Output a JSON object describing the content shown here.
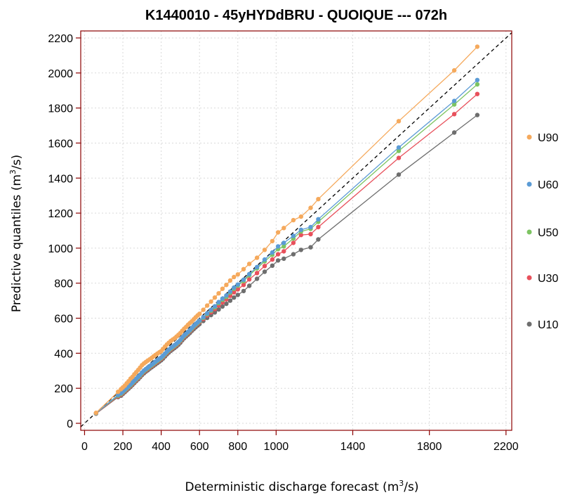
{
  "chart_data": {
    "type": "line",
    "title": "K1440010 - 45yHYDdBRU - QUOIQUE --- 072h",
    "xlabel": "Deterministic discharge forecast (m",
    "xlabel_sup": "3",
    "xlabel_end": "/s)",
    "ylabel": "Predictive quantiles (m",
    "ylabel_sup": "3",
    "ylabel_end": "/s)",
    "xlim": [
      -20,
      2230
    ],
    "ylim": [
      -40,
      2240
    ],
    "x_ticks": [
      0,
      200,
      400,
      600,
      800,
      1000,
      1400,
      1800,
      2200
    ],
    "y_ticks": [
      0,
      200,
      400,
      600,
      800,
      1000,
      1200,
      1400,
      1600,
      1800,
      2000,
      2200
    ],
    "grid": true,
    "reference_line": "y = x (dashed)",
    "legend_position": "right",
    "x": [
      60,
      175,
      190,
      200,
      210,
      220,
      230,
      240,
      250,
      260,
      270,
      280,
      290,
      300,
      310,
      320,
      330,
      340,
      350,
      360,
      370,
      380,
      390,
      400,
      410,
      420,
      430,
      440,
      450,
      460,
      470,
      480,
      490,
      500,
      510,
      520,
      530,
      540,
      550,
      560,
      570,
      580,
      590,
      600,
      620,
      640,
      660,
      680,
      700,
      720,
      740,
      760,
      780,
      800,
      830,
      860,
      900,
      940,
      980,
      1010,
      1040,
      1090,
      1130,
      1180,
      1220,
      1640,
      1930,
      2050
    ],
    "series": [
      {
        "name": "U90",
        "color": "#F5A95C",
        "values": [
          60,
          180,
          195,
          205,
          215,
          228,
          240,
          255,
          265,
          280,
          292,
          305,
          318,
          332,
          342,
          350,
          358,
          365,
          373,
          382,
          390,
          398,
          405,
          412,
          425,
          438,
          450,
          460,
          470,
          478,
          485,
          495,
          505,
          515,
          528,
          540,
          550,
          562,
          572,
          582,
          594,
          605,
          616,
          625,
          648,
          672,
          695,
          718,
          742,
          768,
          790,
          815,
          835,
          850,
          880,
          910,
          945,
          990,
          1040,
          1090,
          1115,
          1160,
          1180,
          1230,
          1280,
          1725,
          2015,
          2150
        ]
      },
      {
        "name": "U60",
        "color": "#5B9BD5",
        "values": [
          58,
          162,
          172,
          182,
          192,
          202,
          212,
          222,
          233,
          244,
          255,
          266,
          277,
          290,
          301,
          310,
          318,
          327,
          335,
          343,
          352,
          360,
          368,
          376,
          386,
          398,
          410,
          420,
          430,
          438,
          446,
          455,
          465,
          476,
          490,
          502,
          512,
          522,
          533,
          545,
          556,
          566,
          576,
          586,
          606,
          628,
          648,
          668,
          692,
          712,
          730,
          752,
          775,
          792,
          820,
          852,
          892,
          935,
          975,
          1010,
          1030,
          1070,
          1105,
          1120,
          1165,
          1575,
          1840,
          1960
        ]
      },
      {
        "name": "U50",
        "color": "#7DC462",
        "values": [
          57,
          158,
          168,
          178,
          188,
          198,
          208,
          218,
          229,
          240,
          251,
          262,
          273,
          286,
          297,
          306,
          314,
          323,
          331,
          339,
          348,
          356,
          364,
          372,
          382,
          394,
          406,
          416,
          426,
          434,
          442,
          451,
          461,
          472,
          486,
          498,
          508,
          518,
          529,
          541,
          552,
          562,
          572,
          582,
          602,
          623,
          643,
          662,
          686,
          705,
          722,
          745,
          768,
          786,
          812,
          845,
          885,
          925,
          962,
          995,
          1010,
          1055,
          1095,
          1110,
          1150,
          1555,
          1820,
          1935
        ]
      },
      {
        "name": "U30",
        "color": "#E8505B",
        "values": [
          56,
          154,
          164,
          174,
          184,
          194,
          204,
          214,
          225,
          236,
          247,
          258,
          269,
          282,
          293,
          302,
          310,
          319,
          327,
          335,
          344,
          352,
          360,
          368,
          378,
          390,
          402,
          412,
          422,
          430,
          438,
          447,
          457,
          468,
          482,
          494,
          504,
          514,
          525,
          537,
          548,
          558,
          568,
          578,
          596,
          616,
          634,
          652,
          673,
          690,
          708,
          728,
          748,
          765,
          790,
          822,
          858,
          898,
          935,
          965,
          982,
          1030,
          1075,
          1080,
          1120,
          1515,
          1765,
          1880
        ]
      },
      {
        "name": "U10",
        "color": "#6E6E6E",
        "values": [
          55,
          150,
          158,
          168,
          178,
          188,
          198,
          208,
          219,
          230,
          241,
          252,
          263,
          275,
          286,
          295,
          303,
          312,
          320,
          328,
          336,
          344,
          352,
          360,
          370,
          382,
          394,
          404,
          414,
          422,
          430,
          439,
          449,
          460,
          474,
          486,
          496,
          506,
          516,
          528,
          538,
          548,
          558,
          567,
          584,
          602,
          618,
          633,
          650,
          667,
          682,
          700,
          718,
          733,
          755,
          785,
          825,
          865,
          900,
          930,
          940,
          965,
          990,
          1005,
          1050,
          1420,
          1660,
          1760
        ]
      }
    ]
  }
}
